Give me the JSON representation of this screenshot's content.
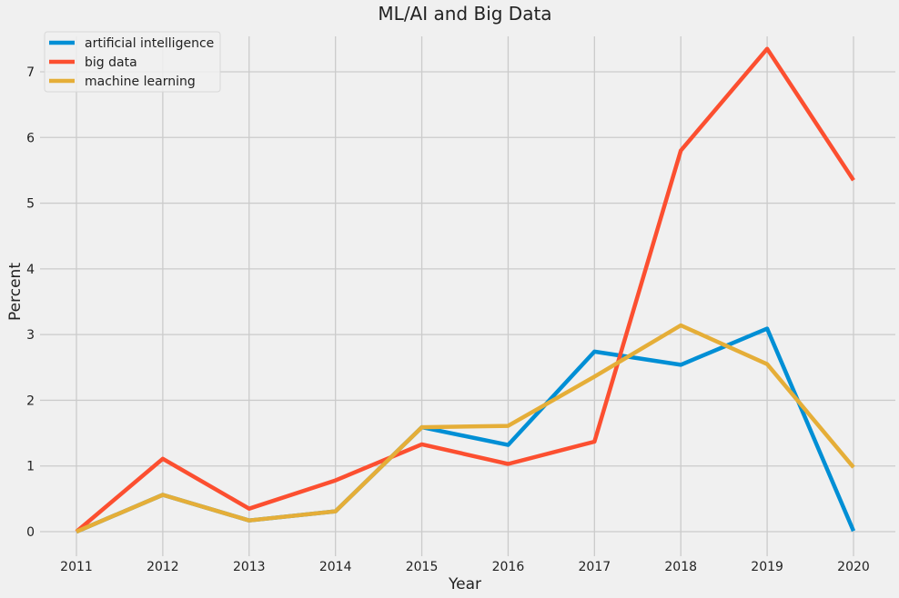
{
  "chart_data": {
    "type": "line",
    "title": "ML/AI and Big Data",
    "xlabel": "Year",
    "ylabel": "Percent",
    "x": [
      2011,
      2012,
      2013,
      2014,
      2015,
      2016,
      2017,
      2018,
      2019,
      2020
    ],
    "x_tick_labels": [
      "2011",
      "2012",
      "2013",
      "2014",
      "2015",
      "2016",
      "2017",
      "2018",
      "2019",
      "2020"
    ],
    "y_tick_labels": [
      "0",
      "1",
      "2",
      "3",
      "4",
      "5",
      "6",
      "7"
    ],
    "y_ticks": [
      0,
      1,
      2,
      3,
      4,
      5,
      6,
      7
    ],
    "xlim": [
      2010.6,
      2020.5
    ],
    "ylim": [
      -0.37,
      7.71
    ],
    "grid": true,
    "legend_position": "top-left",
    "series": [
      {
        "name": "artificial intelligence",
        "color": "#008fd5",
        "values": [
          0,
          0.56,
          0.17,
          0.31,
          1.59,
          1.32,
          2.74,
          2.54,
          3.09,
          0.01
        ]
      },
      {
        "name": "big data",
        "color": "#fc4f30",
        "values": [
          0,
          1.11,
          0.35,
          0.78,
          1.33,
          1.03,
          1.37,
          5.8,
          7.35,
          5.35
        ]
      },
      {
        "name": "machine learning",
        "color": "#e5ae38",
        "values": [
          0,
          0.56,
          0.17,
          0.31,
          1.59,
          1.61,
          2.36,
          3.14,
          2.55,
          0.98
        ]
      }
    ]
  },
  "colors": {
    "background": "#f0f0f0",
    "grid": "#cbcbcb"
  }
}
